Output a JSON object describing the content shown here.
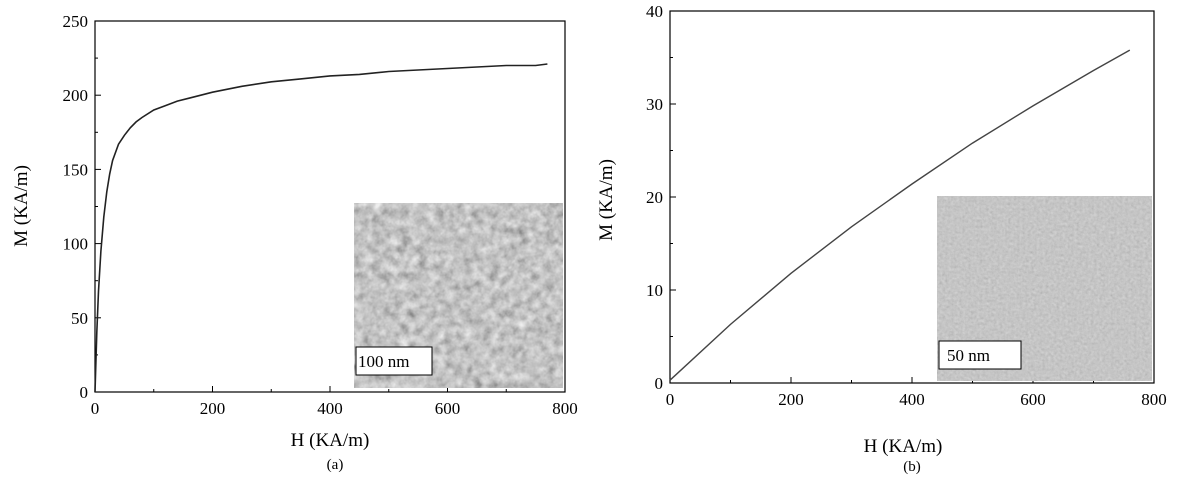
{
  "chart_data": [
    {
      "type": "line",
      "panel_label": "(a)",
      "xlabel": "H (KA/m)",
      "ylabel": "M (KA/m)",
      "xlim": [
        0,
        800
      ],
      "ylim": [
        0,
        250
      ],
      "xticks": [
        "0",
        "200",
        "400",
        "600",
        "800"
      ],
      "yticks": [
        "0",
        "50",
        "100",
        "150",
        "200",
        "250"
      ],
      "grid": false,
      "legend": "none",
      "line_color": "#222222",
      "series": [
        {
          "x": [
            0,
            3,
            6,
            10,
            15,
            20,
            25,
            30,
            40,
            50,
            60,
            70,
            80,
            100,
            120,
            140,
            160,
            180,
            200,
            250,
            300,
            350,
            400,
            450,
            500,
            550,
            600,
            650,
            700,
            750,
            770
          ],
          "y": [
            0,
            40,
            68,
            95,
            118,
            135,
            147,
            156,
            167,
            173,
            178,
            182,
            185,
            190,
            193,
            196,
            198,
            200,
            202,
            206,
            209,
            211,
            213,
            214,
            216,
            217,
            218,
            219,
            220,
            220,
            221
          ]
        }
      ],
      "inset": {
        "scale_bar_label": "100 nm"
      }
    },
    {
      "type": "line",
      "panel_label": "(b)",
      "xlabel": "H (KA/m)",
      "ylabel": "M (KA/m)",
      "xlim": [
        0,
        800
      ],
      "ylim": [
        0,
        40
      ],
      "xticks": [
        "0",
        "200",
        "400",
        "600",
        "800"
      ],
      "yticks": [
        "0",
        "10",
        "20",
        "30",
        "40"
      ],
      "grid": false,
      "legend": "none",
      "line_color": "#444444",
      "series": [
        {
          "x": [
            0,
            100,
            200,
            300,
            400,
            500,
            600,
            700,
            760
          ],
          "y": [
            0.3,
            6.3,
            11.8,
            16.8,
            21.4,
            25.8,
            29.8,
            33.6,
            35.8
          ]
        }
      ],
      "inset": {
        "scale_bar_label": "50 nm"
      }
    }
  ]
}
